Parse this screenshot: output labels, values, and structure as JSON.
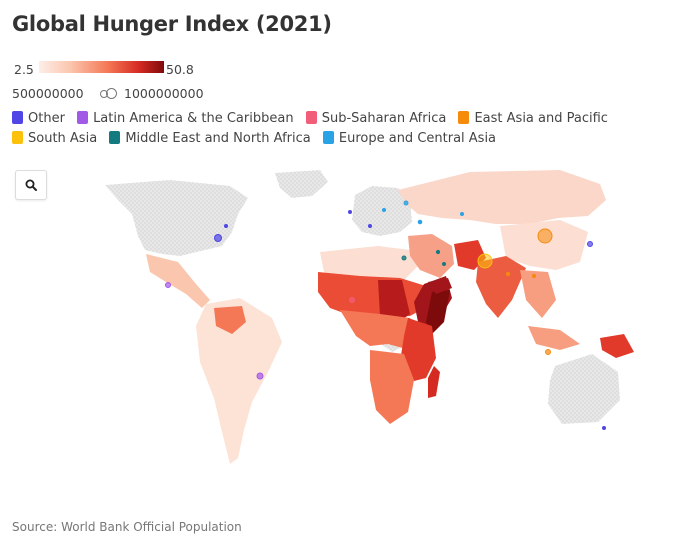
{
  "title": "Global Hunger Index (2021)",
  "color_scale": {
    "min": "2.5",
    "max": "50.8",
    "low_color": "#fdeee8",
    "high_color": "#7e0b0b",
    "nodata_color": "#d9d9d9"
  },
  "size_legend": {
    "small": "500000000",
    "large": "1000000000"
  },
  "categories": [
    {
      "label": "Other",
      "color": "#4f46e5"
    },
    {
      "label": "Latin America & the Caribbean",
      "color": "#a259e6"
    },
    {
      "label": "Sub-Saharan Africa",
      "color": "#f25e7a"
    },
    {
      "label": "East Asia and Pacific",
      "color": "#f58a0b"
    },
    {
      "label": "South Asia",
      "color": "#fcc10a"
    },
    {
      "label": "Middle East and North Africa",
      "color": "#137a7f"
    },
    {
      "label": "Europe and Central Asia",
      "color": "#2aa3e6"
    }
  ],
  "search": {
    "icon": "search-icon"
  },
  "source": "Source: World Bank Official Population"
}
